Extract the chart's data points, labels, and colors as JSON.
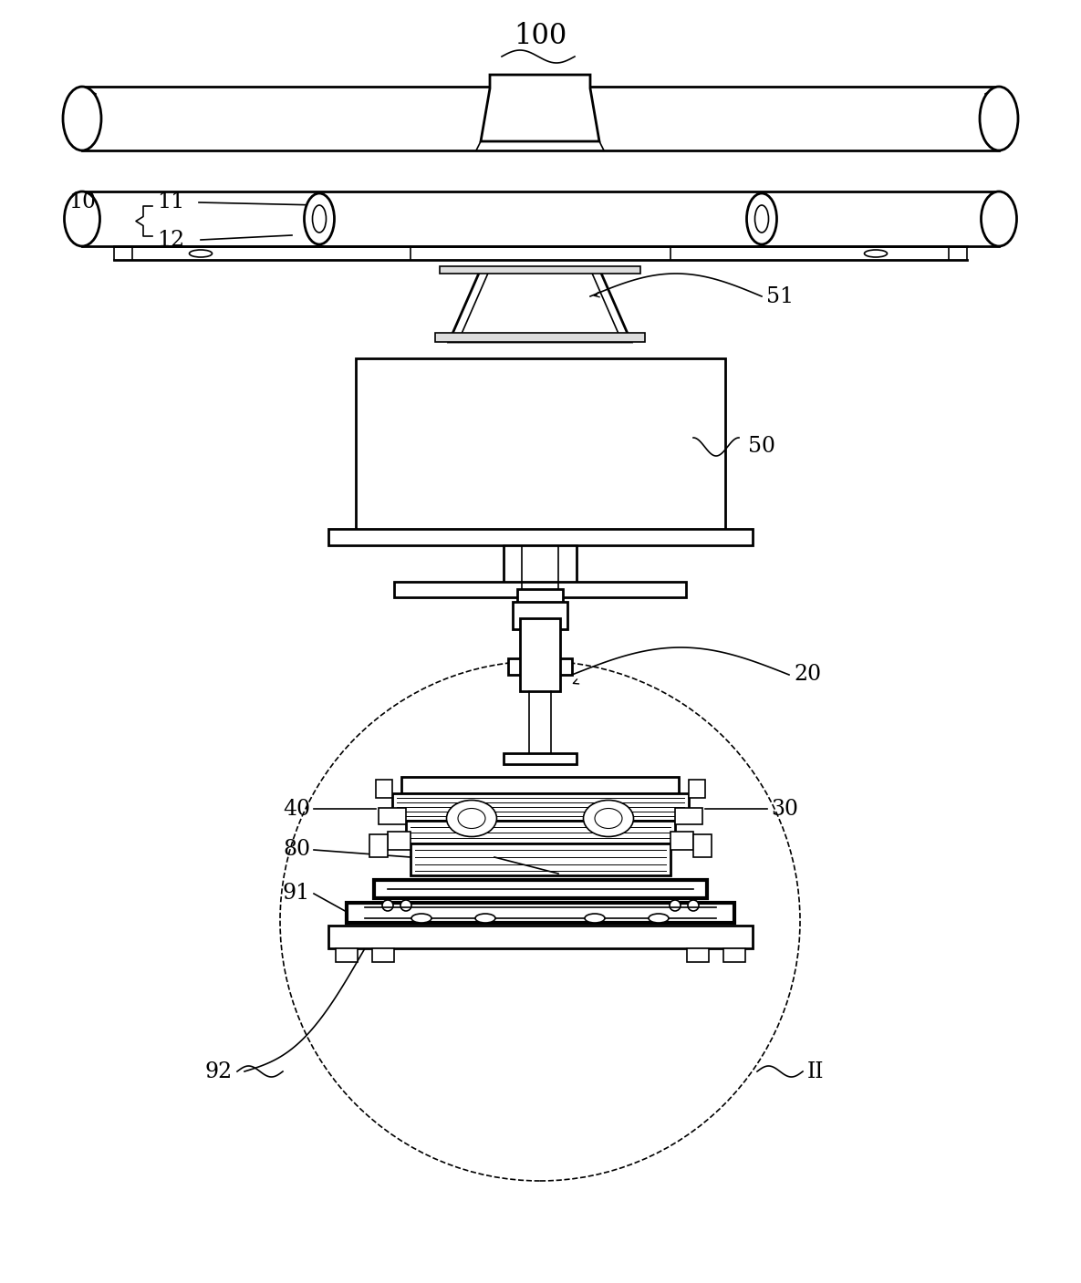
{
  "bg_color": "#ffffff",
  "line_color": "#000000",
  "label_100": "100",
  "label_10": "10",
  "label_11": "11",
  "label_12": "12",
  "label_51": "51",
  "label_50": "50",
  "label_20": "20",
  "label_30": "30",
  "label_40": "40",
  "label_80": "80",
  "label_91": "91",
  "label_92": "92",
  "label_II": "II",
  "figsize": [
    11.85,
    14.07
  ],
  "dpi": 100
}
